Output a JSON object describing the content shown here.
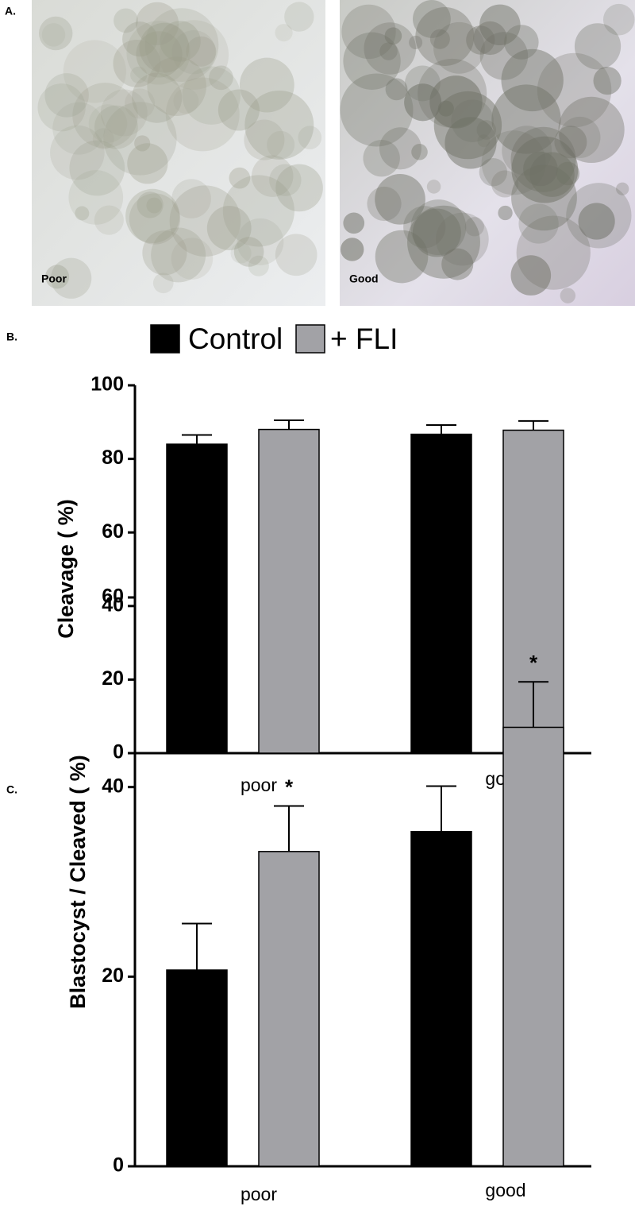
{
  "panel_a": {
    "label": "A.",
    "images": [
      "Poor",
      "Good"
    ]
  },
  "chart_data": [
    {
      "type": "bar",
      "panel_label": "B.",
      "y_label": "Cleavage ( %)",
      "categories": [
        "poor",
        "good"
      ],
      "series": [
        {
          "name": "Control",
          "color": "#000000",
          "values": [
            84,
            86.7
          ],
          "errors": [
            2.5,
            2.5
          ]
        },
        {
          "name": "+ FLI",
          "color": "#a2a2a6",
          "values": [
            88,
            87.8
          ],
          "errors": [
            2.5,
            2.5
          ]
        }
      ],
      "ylim": [
        0,
        100
      ],
      "yticks": [
        0,
        20,
        40,
        60,
        80,
        100
      ],
      "grid": false,
      "legend": "top"
    },
    {
      "type": "bar",
      "panel_label": "C.",
      "y_label": "Blastocyst  / Cleaved ( %)",
      "categories": [
        "poor",
        "good"
      ],
      "series": [
        {
          "color": "#000000",
          "values": [
            20.7,
            35.3
          ],
          "errors": [
            4.9,
            4.8
          ]
        },
        {
          "color": "#a2a2a6",
          "values": [
            33.2,
            46.3
          ],
          "errors": [
            4.8,
            4.8
          ],
          "significance": [
            "*",
            "*"
          ]
        }
      ],
      "ylim": [
        0,
        60
      ],
      "yticks": [
        0,
        20,
        40,
        60
      ],
      "grid": false
    }
  ]
}
